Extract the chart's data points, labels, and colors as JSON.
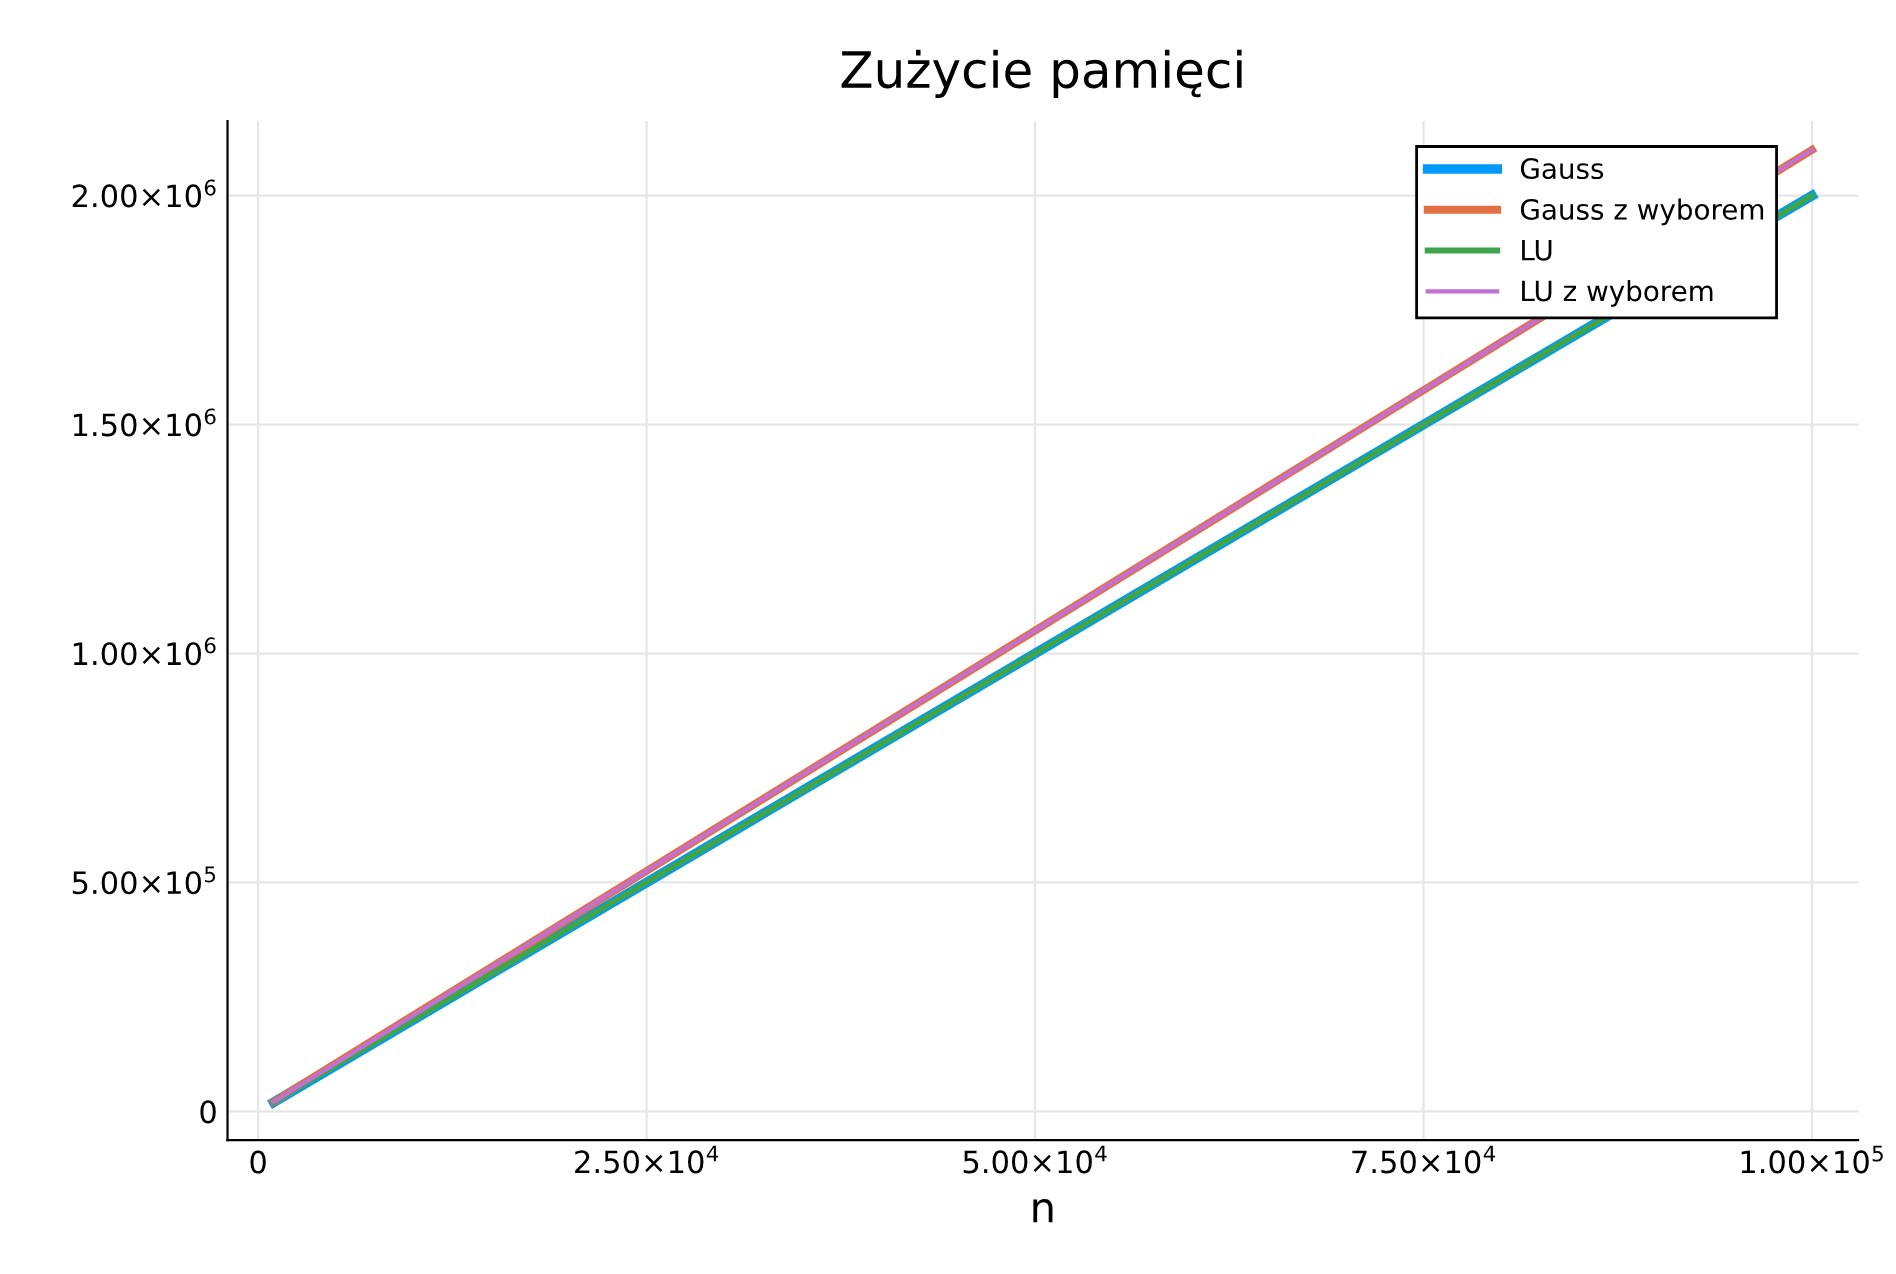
{
  "chart_data": {
    "type": "line",
    "title": "Zużycie pamięci",
    "xlabel": "n",
    "series": [
      {
        "name": "Gauss",
        "color": "#009afa",
        "x": [
          1000,
          25000,
          50000,
          75000,
          100000
        ],
        "values": [
          20000,
          500000,
          1000000,
          1500000,
          2000000
        ]
      },
      {
        "name": "Gauss z wyborem",
        "color": "#e36f47",
        "x": [
          1000,
          25000,
          50000,
          75000,
          100000
        ],
        "values": [
          21000,
          525000,
          1050000,
          1575000,
          2100000
        ]
      },
      {
        "name": "LU",
        "color": "#3ea44e",
        "x": [
          1000,
          25000,
          50000,
          75000,
          100000
        ],
        "values": [
          20000,
          500000,
          1000000,
          1500000,
          2000000
        ]
      },
      {
        "name": "LU z wyborem",
        "color": "#c271d2",
        "x": [
          1000,
          25000,
          50000,
          75000,
          100000
        ],
        "values": [
          21000,
          525000,
          1050000,
          1575000,
          2100000
        ]
      }
    ],
    "xlim": [
      -1970,
      102970
    ],
    "ylim": [
      -63000,
      2163000
    ],
    "xticks": [
      0,
      {
        "value": 25000,
        "label": "2.50×10$^{4}$"
      },
      {
        "value": 50000,
        "label": "5.00×10$^{4}$"
      },
      {
        "value": 75000,
        "label": "7.50×10$^{4}$"
      },
      {
        "value": 100000,
        "label": "1.00×10$^{5}$"
      }
    ],
    "yticks": [
      0,
      {
        "value": 500000,
        "label": "5.00×10$^{5}$"
      },
      {
        "value": 1000000,
        "label": "1.00×10$^{6}$"
      },
      {
        "value": 1500000,
        "label": "1.50×10$^{6}$"
      },
      {
        "value": 2000000,
        "label": "2.00×10$^{6}$"
      }
    ],
    "grid": true,
    "legend": "top right",
    "line_style": "solid",
    "marker": "none"
  }
}
